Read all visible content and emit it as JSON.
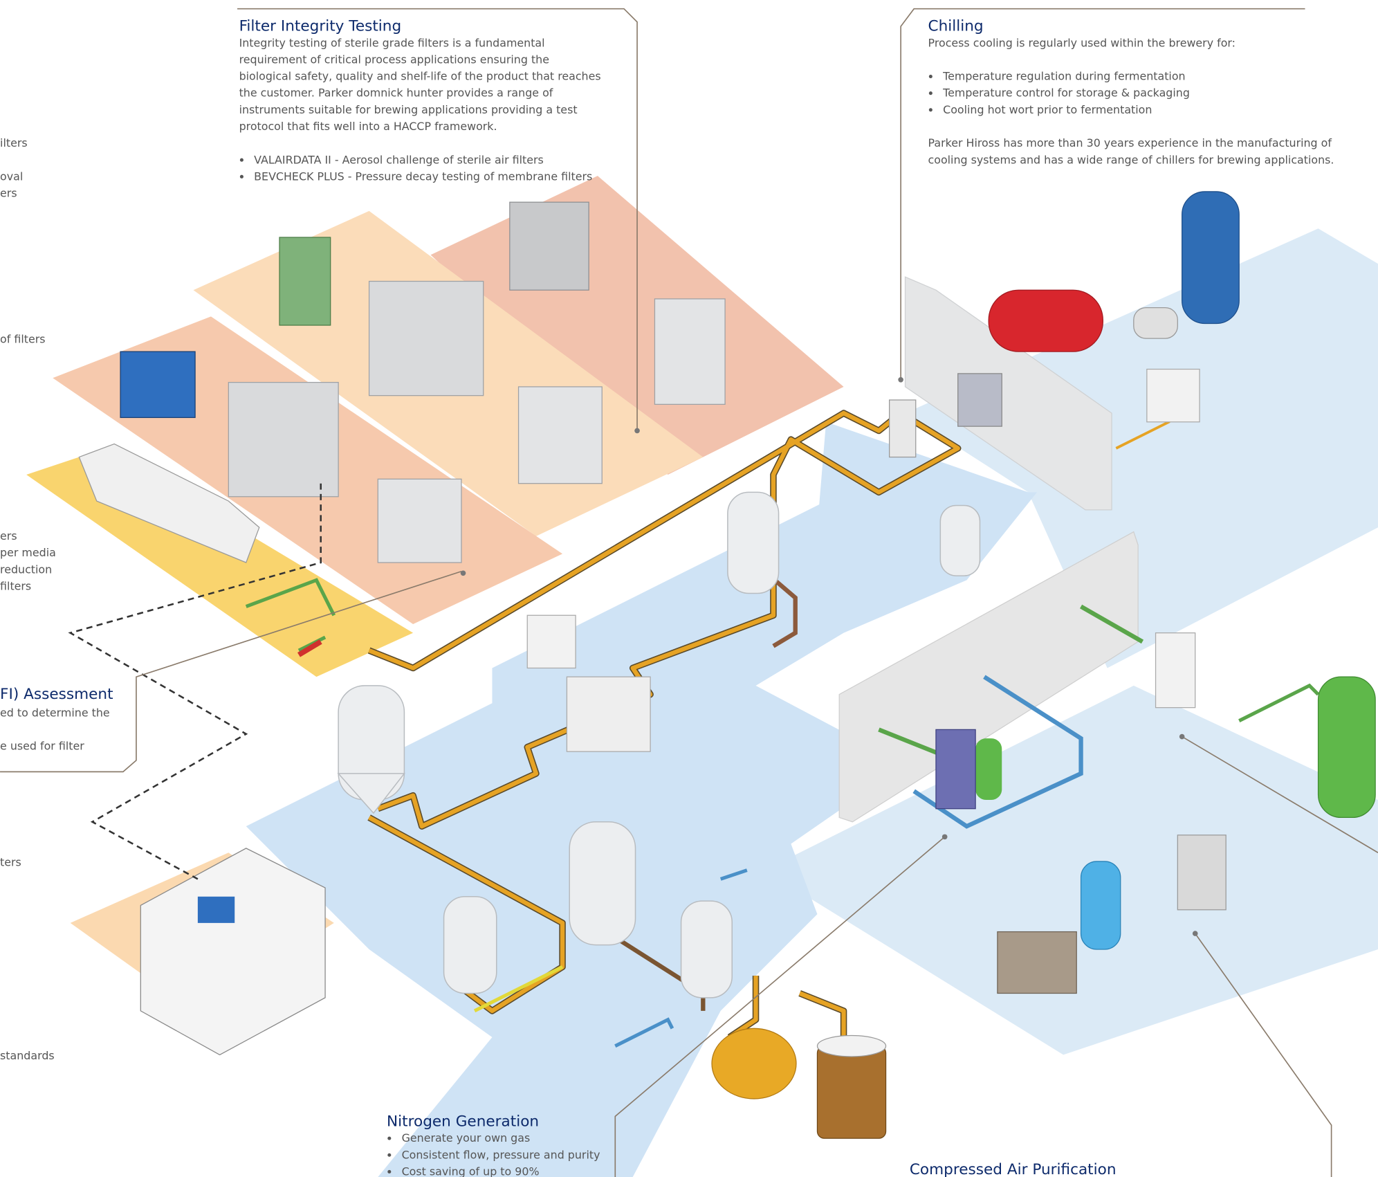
{
  "filter_integrity_testing": {
    "title": "Filter Integrity Testing",
    "paragraph": [
      "Integrity testing of sterile grade filters is a fundamental",
      "requirement of critical process applications ensuring the",
      "biological safety, quality and shelf-life of the product that reaches",
      "the customer. Parker domnick hunter provides a range of",
      "instruments suitable for brewing applications providing a test",
      "protocol that fits well into a HACCP framework."
    ],
    "bullets": [
      "VALAIRDATA II - Aerosol challenge of sterile air filters",
      "BEVCHECK PLUS - Pressure decay testing of membrane filters"
    ]
  },
  "chilling": {
    "title": "Chilling",
    "intro": "Process cooling is regularly used within the brewery for:",
    "bullets": [
      "Temperature regulation during fermentation",
      "Temperature control for storage & packaging",
      "Cooling hot wort prior to fermentation"
    ],
    "paragraph": [
      "Parker Hiross has more than 30 years experience in the manufacturing of",
      "cooling systems and has a wide range of chillers for brewing applications."
    ]
  },
  "nitrogen_generation": {
    "title": "Nitrogen Generation",
    "bullets": [
      "Generate your own gas",
      "Consistent flow, pressure and purity",
      "Cost saving of up to 90%"
    ]
  },
  "compressed_air_purification": {
    "title": "Compressed Air Purification"
  },
  "left_fragments": [
    "ilters",
    "oval",
    "ers",
    "of filters",
    "ers",
    "per media",
    "reduction",
    "filters",
    "FI) Assessment",
    "ed to determine the",
    "e used for filter",
    "ters",
    "standards"
  ]
}
